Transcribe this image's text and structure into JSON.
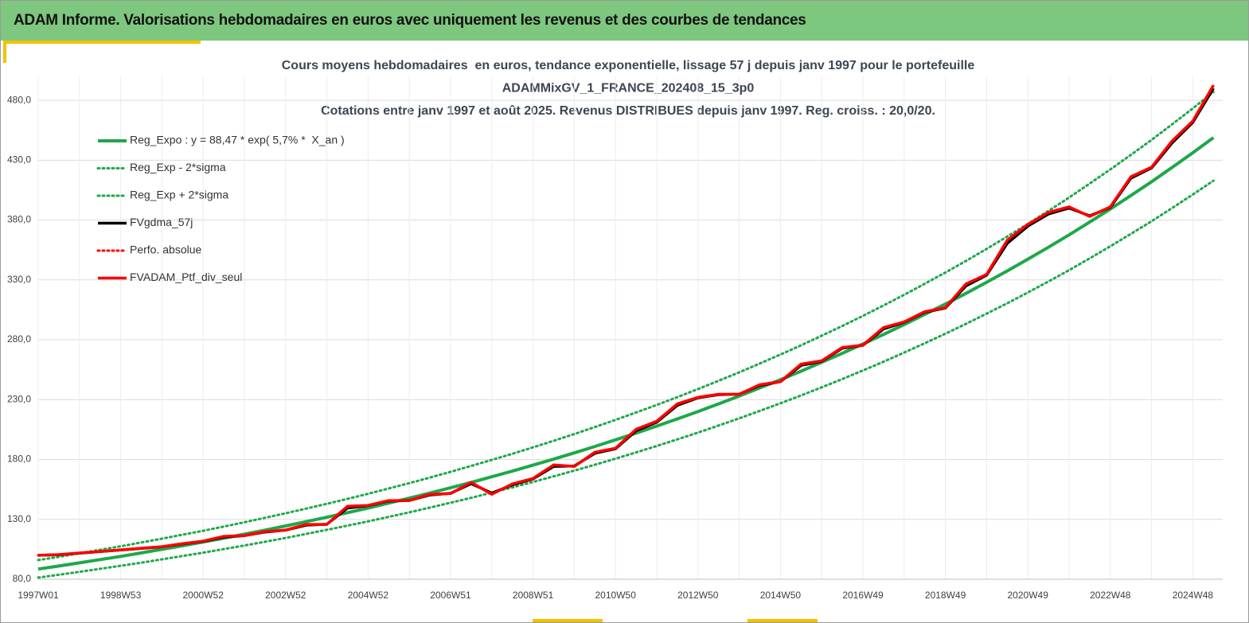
{
  "header": {
    "title": "ADAM Informe. Valorisations hebdomadaires en euros avec uniquement les revenus et des courbes de tendances"
  },
  "chart_data": {
    "type": "line",
    "title_lines": [
      "Cours moyens hebdomadaires  en euros, tendance exponentielle, lissage 57 j depuis janv 1997 pour le portefeuille",
      "ADAMMixGV_1_FRANCE_202408_15_3p0",
      "Cotations entre janv 1997 et août 2025. Revenus DISTRIBUES depuis janv 1997. Reg. croiss. : 20,0/20."
    ],
    "categories": [
      "1997W01",
      null,
      null,
      null,
      "1998W53",
      null,
      null,
      null,
      "2000W52",
      null,
      null,
      null,
      "2002W52",
      null,
      null,
      null,
      "2004W52",
      null,
      null,
      null,
      "2006W51",
      null,
      null,
      null,
      "2008W51",
      null,
      null,
      null,
      "2010W50",
      null,
      null,
      null,
      "2012W50",
      null,
      null,
      null,
      "2014W50",
      null,
      null,
      null,
      "2016W49",
      null,
      null,
      null,
      "2018W49",
      null,
      null,
      null,
      "2020W49",
      null,
      null,
      null,
      "2022W48",
      null,
      null,
      null,
      "2024W48",
      null
    ],
    "ylim": [
      80,
      500
    ],
    "yticks": [
      {
        "value": 80,
        "label": "80,0"
      },
      {
        "value": 130,
        "label": "130,0"
      },
      {
        "value": 180,
        "label": "180,0"
      },
      {
        "value": 230,
        "label": "230,0"
      },
      {
        "value": 280,
        "label": "280,0"
      },
      {
        "value": 330,
        "label": "330,0"
      },
      {
        "value": 380,
        "label": "380,0"
      },
      {
        "value": 430,
        "label": "430,0"
      },
      {
        "value": 480,
        "label": "480,0"
      }
    ],
    "grid": true,
    "legend": "top-left",
    "series": [
      {
        "name": "Reg_Expo : y = 88,47 * exp( 5,7% *  X_an )",
        "color": "#1ea84a",
        "style": "solid",
        "values": [
          88.5,
          91.0,
          93.7,
          96.4,
          99.1,
          102.0,
          105.0,
          108.0,
          111.1,
          114.3,
          117.6,
          121.0,
          124.5,
          128.1,
          131.8,
          135.6,
          139.5,
          143.6,
          147.7,
          152.0,
          156.4,
          160.9,
          165.6,
          170.3,
          175.3,
          180.3,
          185.5,
          190.9,
          196.4,
          202.1,
          207.9,
          213.9,
          220.1,
          226.5,
          233.0,
          239.8,
          246.7,
          253.8,
          261.2,
          268.7,
          276.5,
          284.5,
          292.7,
          301.2,
          309.9,
          318.8,
          328.0,
          337.5,
          347.3,
          357.3,
          367.6,
          378.3,
          389.2,
          400.5,
          412.0,
          424.0,
          436.2,
          448.8
        ]
      },
      {
        "name": "Reg_Exp - 2*sigma",
        "color": "#1ea84a",
        "style": "dotted",
        "values": [
          81.4,
          83.7,
          86.2,
          88.7,
          91.2,
          93.8,
          96.6,
          99.4,
          102.2,
          105.2,
          108.2,
          111.3,
          114.5,
          117.9,
          121.3,
          124.8,
          128.3,
          132.1,
          135.9,
          139.8,
          143.9,
          148.0,
          152.4,
          156.7,
          161.3,
          165.9,
          170.7,
          175.6,
          180.7,
          185.9,
          191.3,
          196.8,
          202.5,
          208.4,
          214.4,
          220.6,
          227.0,
          233.5,
          240.3,
          247.2,
          254.4,
          261.7,
          269.3,
          277.1,
          285.1,
          293.3,
          301.8,
          310.5,
          319.5,
          328.7,
          338.2,
          348.0,
          358.1,
          368.5,
          379.0,
          390.1,
          401.3,
          412.9
        ]
      },
      {
        "name": "Reg_Exp + 2*sigma",
        "color": "#1ea84a",
        "style": "dotted",
        "values": [
          96.0,
          98.7,
          101.7,
          104.6,
          107.5,
          110.7,
          113.9,
          117.2,
          120.5,
          124.0,
          127.6,
          131.3,
          135.1,
          139.0,
          143.0,
          147.1,
          151.4,
          155.8,
          160.3,
          164.9,
          169.7,
          174.6,
          179.7,
          184.8,
          190.2,
          195.6,
          201.3,
          207.1,
          213.1,
          219.3,
          225.6,
          232.1,
          238.8,
          245.8,
          252.8,
          260.2,
          267.7,
          275.4,
          283.4,
          291.5,
          300.0,
          308.7,
          317.6,
          326.8,
          336.2,
          345.9,
          355.9,
          366.2,
          376.8,
          387.7,
          398.8,
          410.5,
          422.3,
          434.5,
          447.0,
          460.0,
          473.3,
          486.9
        ]
      },
      {
        "name": "FVgdma_57j",
        "color": "#000000",
        "style": "solid",
        "values": [
          100,
          100.5,
          101.8,
          103.1,
          104.4,
          105.8,
          107.1,
          109.5,
          111.6,
          115.2,
          116.4,
          119.4,
          121.0,
          125.2,
          125.9,
          139.5,
          141.5,
          145.3,
          145.8,
          150.4,
          151.8,
          159.8,
          152.0,
          158.8,
          163.8,
          174.2,
          174.6,
          185.2,
          189.0,
          204.0,
          211.2,
          225.3,
          231.5,
          234.2,
          234.6,
          241.8,
          245.0,
          258.6,
          262.0,
          273.0,
          275.4,
          289.0,
          294.6,
          303.0,
          306.5,
          325.0,
          334.0,
          360.5,
          375.0,
          385.0,
          390.0,
          383.5,
          390.5,
          415.0,
          423.5,
          444.5,
          461.5,
          490.0
        ]
      },
      {
        "name": "Perfo. absolue",
        "color": "#ff0000",
        "style": "dotted",
        "values": [
          100,
          100.6,
          101.9,
          103.2,
          104.5,
          105.9,
          107.2,
          109.8,
          111.8,
          115.8,
          116.5,
          119.8,
          121.1,
          125.8,
          125.8,
          141,
          141.7,
          145.7,
          145.7,
          151,
          151.6,
          160.9,
          151,
          159.6,
          164.2,
          175.5,
          174.2,
          186.1,
          189.4,
          205.3,
          212,
          226.5,
          231.9,
          234.5,
          234.5,
          242.5,
          245.1,
          259.7,
          262.4,
          273.6,
          275.6,
          290.2,
          294.9,
          303.5,
          306.8,
          326.7,
          334.6,
          363.2,
          376.4,
          386.4,
          391,
          383,
          391,
          416.2,
          424.2,
          446.1,
          462.7,
          492.5
        ]
      },
      {
        "name": "FVADAM_Ptf_div_seul",
        "color": "#ff0000",
        "style": "solid",
        "values": [
          100,
          100.6,
          101.9,
          103.2,
          104.5,
          105.9,
          107.2,
          109.8,
          111.8,
          115.8,
          116.5,
          119.8,
          121.1,
          125.8,
          125.8,
          141,
          141.7,
          145.7,
          145.7,
          151,
          151.6,
          160.9,
          151,
          159.6,
          164.2,
          175.5,
          174.2,
          186.1,
          189.4,
          205.3,
          212,
          226.5,
          231.9,
          234.5,
          234.5,
          242.5,
          245.1,
          259.7,
          262.4,
          273.6,
          275.6,
          290.2,
          294.9,
          303.5,
          306.8,
          326.7,
          334.6,
          363.2,
          376.4,
          386.4,
          391,
          383,
          391,
          416.2,
          424.2,
          446.1,
          462.7,
          492.5
        ]
      }
    ]
  }
}
